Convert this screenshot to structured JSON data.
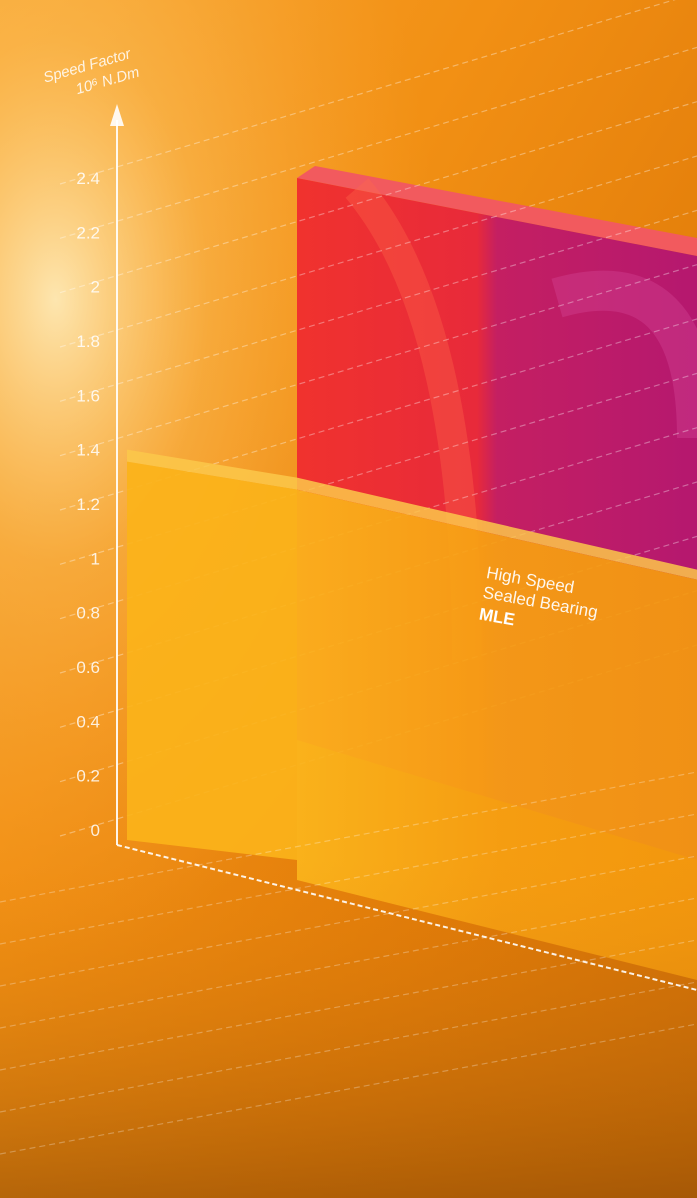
{
  "chart_data": {
    "type": "bar",
    "title": "",
    "ylabel_lines": [
      "Speed Factor",
      "10⁶ N.Dm"
    ],
    "ytick_labels": [
      "0",
      "0.2",
      "0.4",
      "0.6",
      "0.8",
      "1",
      "1.2",
      "1.4",
      "1.6",
      "1.8",
      "2",
      "2.2",
      "2.4"
    ],
    "ylim": [
      0,
      2.4
    ],
    "grid": true,
    "series": [
      {
        "name": "",
        "values": [
          2.4
        ],
        "color": "#e8283a"
      },
      {
        "name": "High Speed Sealed Bearing MLE",
        "values": [
          1.4
        ],
        "color": "#f5a312"
      }
    ],
    "annotation": {
      "lines": [
        "High Speed",
        "Sealed Bearing"
      ],
      "brand": "MLE"
    }
  }
}
